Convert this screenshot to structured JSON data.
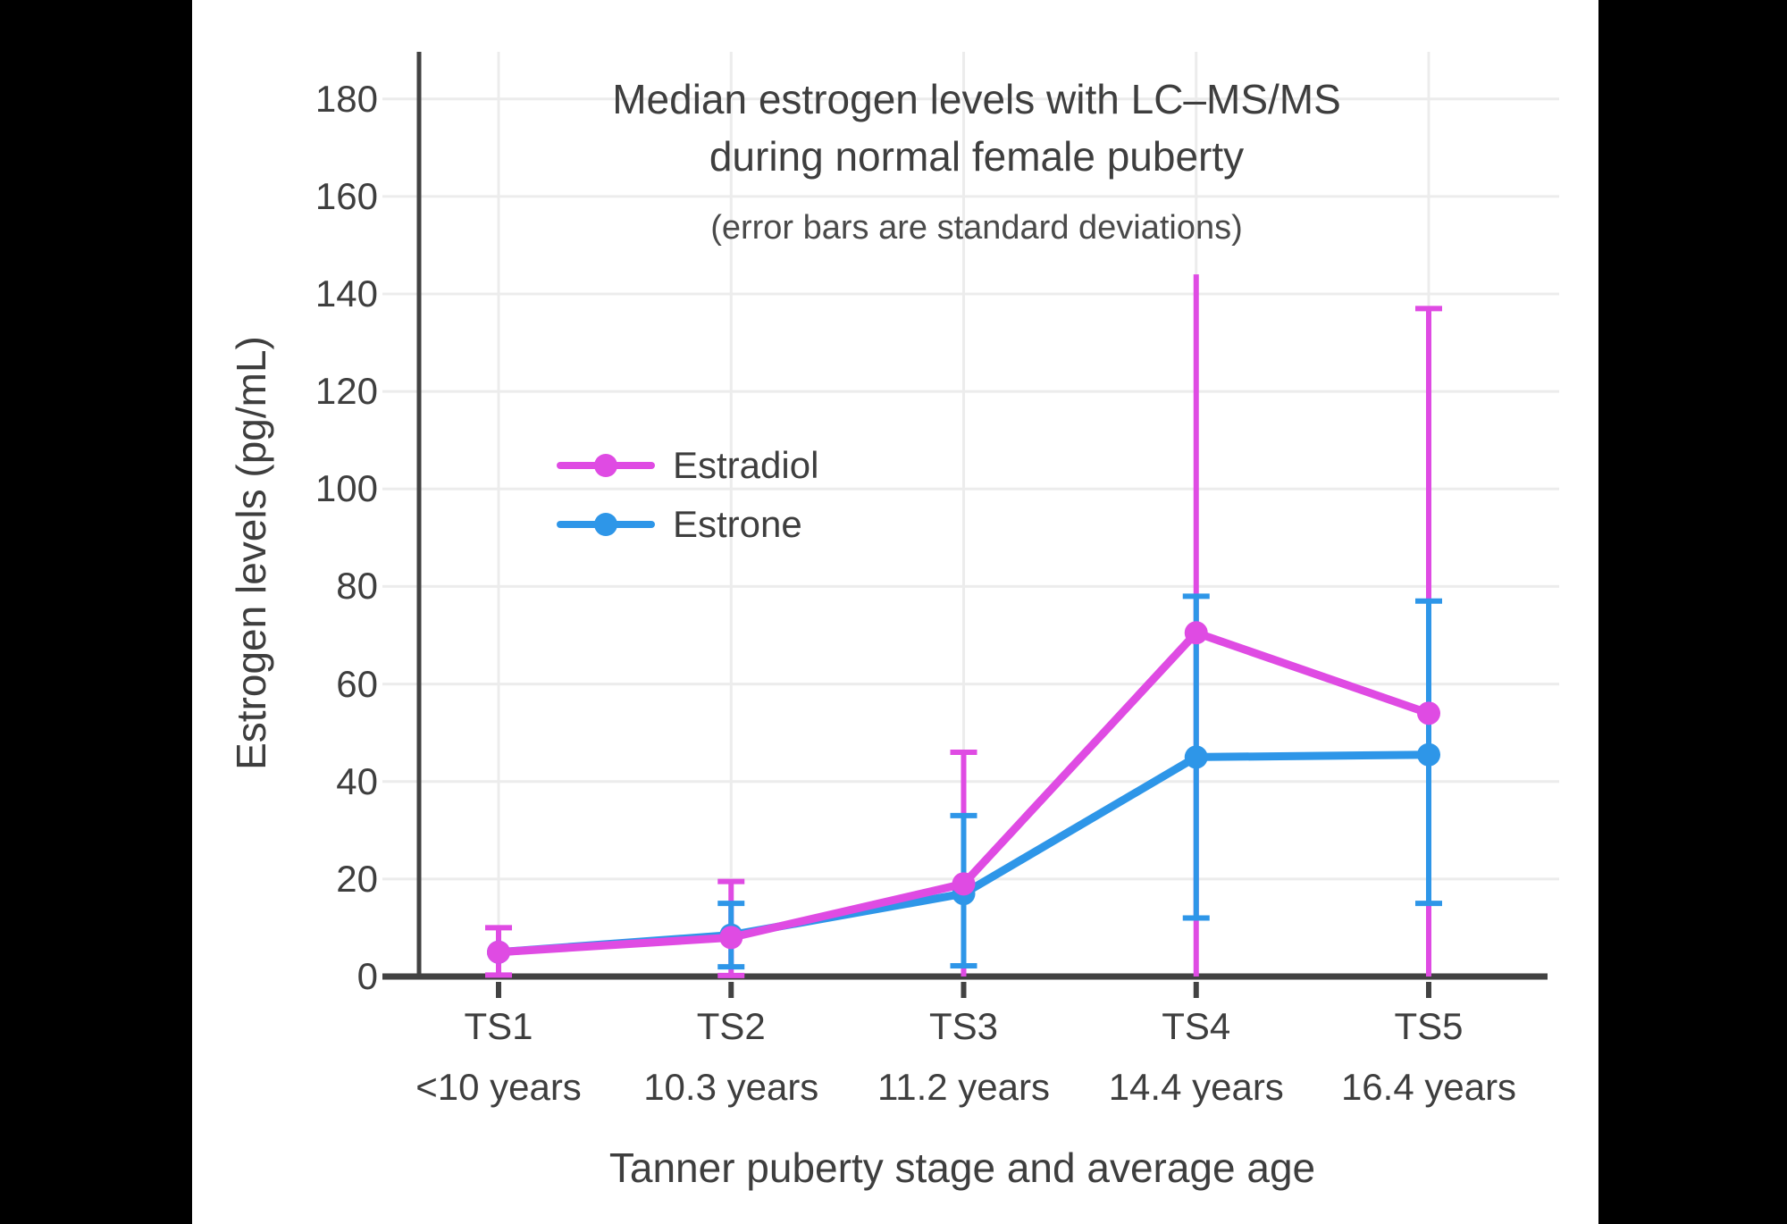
{
  "frame": {
    "background": "#000000",
    "content_background": "#ffffff",
    "text_color": "#3E3E3E",
    "axis_color": "#424242",
    "grid_color": "#ECECEC"
  },
  "chart_data": {
    "type": "line",
    "title_line1": "Median estrogen levels with LC–MS/MS",
    "title_line2": "during normal female puberty",
    "subtitle": "(error bars are standard deviations)",
    "xlabel": "Tanner puberty stage and average age",
    "ylabel": "Estrogen levels (pg/mL)",
    "categories": [
      "TS1",
      "TS2",
      "TS3",
      "TS4",
      "TS5"
    ],
    "category_ages": [
      "<10 years",
      "10.3 years",
      "11.2 years",
      "14.4 years",
      "16.4 years"
    ],
    "y_ticks": [
      0,
      20,
      40,
      60,
      80,
      100,
      120,
      140,
      160,
      180
    ],
    "ylim": [
      0,
      189
    ],
    "grid": true,
    "legend_position": "upper-left-inside",
    "series": [
      {
        "name": "Estradiol",
        "color": "#DF4BE3",
        "values": [
          5,
          8,
          19,
          70.5,
          54
        ],
        "err_hi": [
          10,
          19.5,
          46,
          144,
          137
        ],
        "err_lo": [
          0.3,
          0.2,
          0,
          0,
          0
        ],
        "cap_hi": [
          true,
          true,
          true,
          false,
          true
        ],
        "cap_lo": [
          true,
          true,
          false,
          false,
          false
        ]
      },
      {
        "name": "Estrone",
        "color": "#2E96E8",
        "values": [
          5,
          8.5,
          17,
          45,
          45.5
        ],
        "err_hi": [
          null,
          15,
          33,
          78,
          77
        ],
        "err_lo": [
          null,
          2,
          2.2,
          12,
          15
        ],
        "cap_hi": [
          false,
          true,
          true,
          true,
          true
        ],
        "cap_lo": [
          false,
          true,
          true,
          true,
          true
        ]
      }
    ]
  }
}
